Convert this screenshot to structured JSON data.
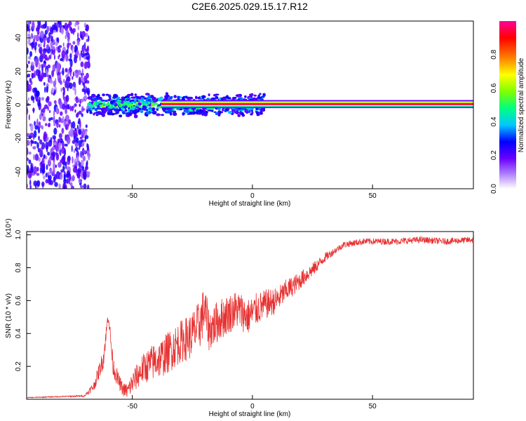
{
  "chart_data": [
    {
      "type": "heatmap",
      "title": "C2E6.2025.029.15.17.R12",
      "xlabel": "Height of straight line (km)",
      "ylabel": "Frequency (Hz)",
      "xlim": [
        -94,
        92
      ],
      "ylim": [
        -50,
        50
      ],
      "x_ticks": [
        "-50",
        "0",
        "50"
      ],
      "x_tick_values": [
        -50,
        0,
        50
      ],
      "y_ticks": [
        "-40",
        "-20",
        "0",
        "20",
        "40"
      ],
      "y_tick_values": [
        -40,
        -20,
        0,
        20,
        40
      ],
      "grid": false,
      "colorbar": {
        "label": "Normalized spectral amplitude",
        "range": [
          0,
          1
        ],
        "ticks": [
          "0.0",
          "0.2",
          "0.4",
          "0.6",
          "0.8"
        ],
        "tick_values": [
          0,
          0.2,
          0.4,
          0.6,
          0.8
        ],
        "colormap": [
          "#ffffff",
          "#b58cff",
          "#6a00ff",
          "#0000ff",
          "#00c8ff",
          "#00ff80",
          "#80ff00",
          "#ffff00",
          "#ff8000",
          "#ff0000",
          "#ff0099"
        ]
      },
      "regions": [
        {
          "name": "noise",
          "x": [
            -94,
            -68
          ],
          "freq": [
            -50,
            50
          ],
          "amplitude": [
            0.1,
            0.3
          ]
        },
        {
          "name": "emerging signal",
          "x": [
            -68,
            5
          ],
          "center_freq": 0,
          "halfwidth_hz": [
            3,
            7
          ],
          "amplitude": [
            0.2,
            0.7
          ]
        },
        {
          "name": "steady signal",
          "x": [
            5,
            92
          ],
          "center_freq": 0.5,
          "halfwidth_hz": 1.5,
          "amplitude": 0.95
        }
      ]
    },
    {
      "type": "line",
      "title": "",
      "xlabel": "Height of straight line (km)",
      "ylabel": "SNR (10 * v/v)",
      "y_multiplier": "(x10⁴)",
      "xlim": [
        -94,
        92
      ],
      "ylim": [
        0,
        1.02
      ],
      "x_ticks": [
        "-50",
        "0",
        "50"
      ],
      "x_tick_values": [
        -50,
        0,
        50
      ],
      "y_ticks": [
        "0.2",
        "0.4",
        "0.6",
        "0.8",
        "1.0"
      ],
      "y_tick_values": [
        0.2,
        0.4,
        0.6,
        0.8,
        1.0
      ],
      "grid": false,
      "series": [
        {
          "color": "#e83030",
          "x": [
            -94,
            -70,
            -66,
            -62,
            -60,
            -58,
            -56,
            -54,
            -52,
            -50,
            -46,
            -42,
            -38,
            -34,
            -30,
            -26,
            -22,
            -20,
            -18,
            -14,
            -10,
            -6,
            -2,
            2,
            6,
            10,
            14,
            18,
            22,
            26,
            30,
            34,
            38,
            42,
            46,
            50,
            60,
            70,
            80,
            92
          ],
          "y": [
            0.01,
            0.02,
            0.08,
            0.25,
            0.52,
            0.2,
            0.12,
            0.06,
            0.05,
            0.1,
            0.18,
            0.22,
            0.25,
            0.3,
            0.35,
            0.38,
            0.45,
            0.55,
            0.42,
            0.48,
            0.52,
            0.55,
            0.5,
            0.55,
            0.58,
            0.6,
            0.66,
            0.7,
            0.75,
            0.8,
            0.86,
            0.9,
            0.94,
            0.95,
            0.96,
            0.96,
            0.96,
            0.97,
            0.96,
            0.97
          ],
          "noise": [
            0.002,
            0.005,
            0.03,
            0.06,
            0.04,
            0.06,
            0.05,
            0.04,
            0.05,
            0.07,
            0.09,
            0.11,
            0.12,
            0.13,
            0.13,
            0.14,
            0.15,
            0.15,
            0.13,
            0.13,
            0.12,
            0.12,
            0.11,
            0.1,
            0.09,
            0.08,
            0.07,
            0.06,
            0.05,
            0.04,
            0.03,
            0.02,
            0.02,
            0.02,
            0.02,
            0.02,
            0.02,
            0.02,
            0.02,
            0.02
          ]
        }
      ]
    }
  ]
}
